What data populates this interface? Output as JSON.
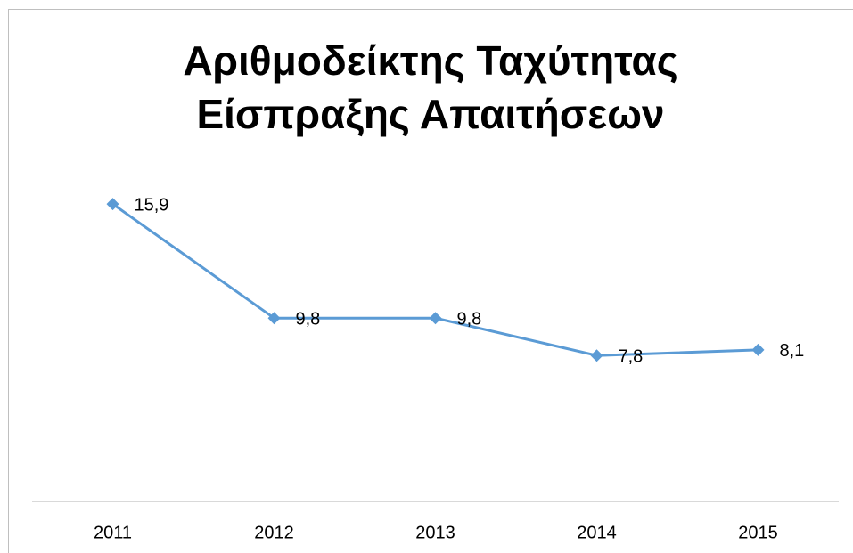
{
  "chart_data": {
    "type": "line",
    "title": "Αριθμοδείκτης Ταχύτητας Είσπραξης Απαιτήσεων",
    "categories": [
      "2011",
      "2012",
      "2013",
      "2014",
      "2015"
    ],
    "values": [
      15.9,
      9.8,
      9.8,
      7.8,
      8.1
    ],
    "value_labels": [
      "15,9",
      "9,8",
      "9,8",
      "7,8",
      "8,1"
    ],
    "color": "#5b9bd5",
    "ylim": [
      0,
      18
    ]
  }
}
